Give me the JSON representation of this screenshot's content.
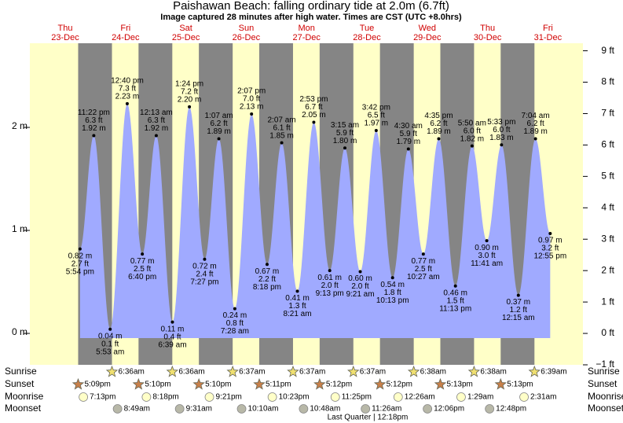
{
  "chart_data": {
    "type": "area",
    "title": "Paishawan Beach: falling  ordinary tide at 2.0m (6.7ft)",
    "subtitle": "Image captured 28 minutes after high water. Times are CST (UTC +8.0hrs)",
    "color": "#a0aaff",
    "ylim": [
      -0.305,
      2.817
    ],
    "yticks": [
      {
        "value": 0,
        "label": "0 m"
      },
      {
        "value": 1,
        "label": "1 m"
      },
      {
        "value": 2,
        "label": "2 m"
      }
    ],
    "y2lim": [
      -1,
      9.24
    ],
    "y2ticks": [
      {
        "value": -1,
        "label": "−1 ft"
      },
      {
        "value": 0,
        "label": "0 ft"
      },
      {
        "value": 1,
        "label": "1 ft"
      },
      {
        "value": 2,
        "label": "2 ft"
      },
      {
        "value": 3,
        "label": "3 ft"
      },
      {
        "value": 4,
        "label": "4 ft"
      },
      {
        "value": 5,
        "label": "5 ft"
      },
      {
        "value": 6,
        "label": "6 ft"
      },
      {
        "value": 7,
        "label": "7 ft"
      },
      {
        "value": 8,
        "label": "8 ft"
      },
      {
        "value": 9,
        "label": "9 ft"
      }
    ],
    "row_labels": [
      "Sunrise",
      "Sunset",
      "Moonrise",
      "Moonset"
    ],
    "days": [
      {
        "weekday": "Thu",
        "date": "23-Dec",
        "sunset": "5:09pm",
        "moonrise": "7:13pm",
        "tides": [
          {
            "time": "5:54 pm",
            "height": 0.82,
            "height_label": "0.82 m",
            "feet": "2.7 ft"
          },
          {
            "time": "11:22 pm",
            "height": 1.92,
            "height_label": "1.92 m",
            "feet": "6.3 ft"
          }
        ]
      },
      {
        "weekday": "Fri",
        "date": "24-Dec",
        "sunrise": "6:36am",
        "sunset": "5:10pm",
        "moonrise": "8:18pm",
        "moonset": "8:49am",
        "tides": [
          {
            "time": "5:53 am",
            "height": 0.04,
            "height_label": "0.04 m",
            "feet": "0.1 ft"
          },
          {
            "time": "12:40 pm",
            "height": 2.23,
            "height_label": "2.23 m",
            "feet": "7.3 ft"
          },
          {
            "time": "6:40 pm",
            "height": 0.77,
            "height_label": "0.77 m",
            "feet": "2.5 ft"
          }
        ]
      },
      {
        "weekday": "Sat",
        "date": "25-Dec",
        "sunrise": "6:36am",
        "sunset": "5:10pm",
        "moonrise": "9:21pm",
        "moonset": "9:31am",
        "tides": [
          {
            "time": "12:13 am",
            "height": 1.92,
            "height_label": "1.92 m",
            "feet": "6.3 ft"
          },
          {
            "time": "6:39 am",
            "height": 0.11,
            "height_label": "0.11 m",
            "feet": "0.4 ft"
          },
          {
            "time": "1:24 pm",
            "height": 2.2,
            "height_label": "2.20 m",
            "feet": "7.2 ft"
          },
          {
            "time": "7:27 pm",
            "height": 0.72,
            "height_label": "0.72 m",
            "feet": "2.4 ft"
          }
        ]
      },
      {
        "weekday": "Sun",
        "date": "26-Dec",
        "sunrise": "6:37am",
        "sunset": "5:11pm",
        "moonrise": "10:23pm",
        "moonset": "10:10am",
        "tides": [
          {
            "time": "1:07 am",
            "height": 1.89,
            "height_label": "1.89 m",
            "feet": "6.2 ft"
          },
          {
            "time": "7:28 am",
            "height": 0.24,
            "height_label": "0.24 m",
            "feet": "0.8 ft"
          },
          {
            "time": "2:07 pm",
            "height": 2.13,
            "height_label": "2.13 m",
            "feet": "7.0 ft"
          },
          {
            "time": "8:18 pm",
            "height": 0.67,
            "height_label": "0.67 m",
            "feet": "2.2 ft"
          }
        ]
      },
      {
        "weekday": "Mon",
        "date": "27-Dec",
        "sunrise": "6:37am",
        "sunset": "5:12pm",
        "moonrise": "11:25pm",
        "moonset": "10:48am",
        "tides": [
          {
            "time": "2:07 am",
            "height": 1.85,
            "height_label": "1.85 m",
            "feet": "6.1 ft"
          },
          {
            "time": "8:21 am",
            "height": 0.41,
            "height_label": "0.41 m",
            "feet": "1.3 ft"
          },
          {
            "time": "2:53 pm",
            "height": 2.05,
            "height_label": "2.05 m",
            "feet": "6.7 ft"
          },
          {
            "time": "9:13 pm",
            "height": 0.61,
            "height_label": "0.61 m",
            "feet": "2.0 ft"
          }
        ]
      },
      {
        "weekday": "Tue",
        "date": "28-Dec",
        "sunrise": "6:37am",
        "sunset": "5:12pm",
        "moonset": "11:26am",
        "moon_phase": "Last Quarter | 12:18pm",
        "tides": [
          {
            "time": "3:15 am",
            "height": 1.8,
            "height_label": "1.80 m",
            "feet": "5.9 ft"
          },
          {
            "time": "9:21 am",
            "height": 0.6,
            "height_label": "0.60 m",
            "feet": "2.0 ft"
          },
          {
            "time": "3:42 pm",
            "height": 1.97,
            "height_label": "1.97 m",
            "feet": "6.5 ft"
          },
          {
            "time": "10:13 pm",
            "height": 0.54,
            "height_label": "0.54 m",
            "feet": "1.8 ft"
          }
        ]
      },
      {
        "weekday": "Wed",
        "date": "29-Dec",
        "sunrise": "6:38am",
        "sunset": "5:13pm",
        "moonrise": "12:26am",
        "moonset": "12:06pm",
        "tides": [
          {
            "time": "4:30 am",
            "height": 1.79,
            "height_label": "1.79 m",
            "feet": "5.9 ft"
          },
          {
            "time": "10:27 am",
            "height": 0.77,
            "height_label": "0.77 m",
            "feet": "2.5 ft"
          },
          {
            "time": "4:35 pm",
            "height": 1.89,
            "height_label": "1.89 m",
            "feet": "6.2 ft"
          },
          {
            "time": "11:13 pm",
            "height": 0.46,
            "height_label": "0.46 m",
            "feet": "1.5 ft"
          }
        ]
      },
      {
        "weekday": "Thu",
        "date": "30-Dec",
        "sunrise": "6:38am",
        "sunset": "5:13pm",
        "moonrise": "1:29am",
        "moonset": "12:48pm",
        "tides": [
          {
            "time": "5:50 am",
            "height": 1.82,
            "height_label": "1.82 m",
            "feet": "6.0 ft"
          },
          {
            "time": "11:41 am",
            "height": 0.9,
            "height_label": "0.90 m",
            "feet": "3.0 ft"
          },
          {
            "time": "5:33 pm",
            "height": 1.83,
            "height_label": "1.83 m",
            "feet": "6.0 ft"
          }
        ]
      },
      {
        "weekday": "Fri",
        "date": "31-Dec",
        "sunrise": "6:39am",
        "moonrise": "2:31am",
        "tides": [
          {
            "time": "12:15 am",
            "height": 0.37,
            "height_label": "0.37 m",
            "feet": "1.2 ft"
          },
          {
            "time": "7:04 am",
            "height": 1.89,
            "height_label": "1.89 m",
            "feet": "6.2 ft"
          },
          {
            "time": "12:55 pm",
            "height": 0.97,
            "height_label": "0.97 m",
            "feet": "3.2 ft"
          }
        ]
      }
    ]
  }
}
